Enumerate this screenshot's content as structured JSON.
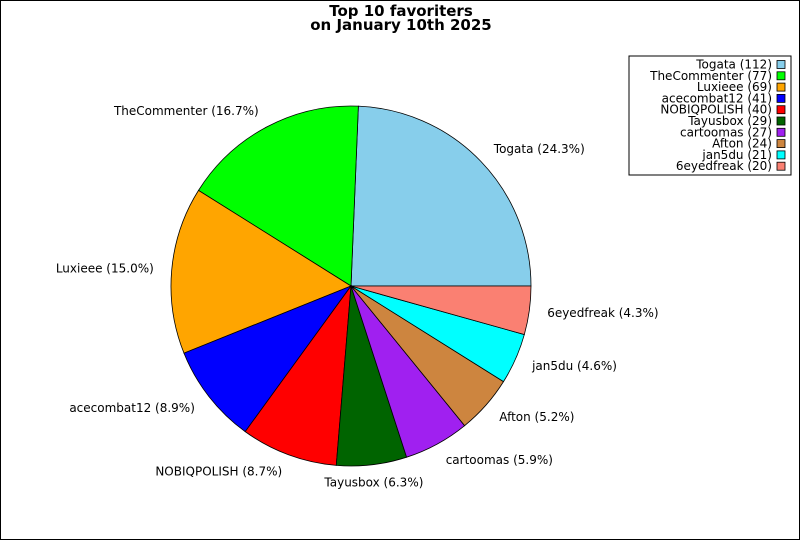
{
  "chart_data": {
    "type": "pie",
    "title_lines": [
      "Top 10 favoriters",
      "on January 10th 2025"
    ],
    "slices": [
      {
        "name": "Togata",
        "value": 112,
        "pct_label": "Togata (24.3%)",
        "legend_label": "Togata (112)",
        "color": "#87CEEB"
      },
      {
        "name": "TheCommenter",
        "value": 77,
        "pct_label": "TheCommenter (16.7%)",
        "legend_label": "TheCommenter (77)",
        "color": "#00FF00"
      },
      {
        "name": "Luxieee",
        "value": 69,
        "pct_label": "Luxieee (15.0%)",
        "legend_label": "Luxieee (69)",
        "color": "#FFA500"
      },
      {
        "name": "acecombat12",
        "value": 41,
        "pct_label": "acecombat12 (8.9%)",
        "legend_label": "acecombat12 (41)",
        "color": "#0000FF"
      },
      {
        "name": "NOBIQPOLISH",
        "value": 40,
        "pct_label": "NOBIQPOLISH (8.7%)",
        "legend_label": "NOBIQPOLISH (40)",
        "color": "#FF0000"
      },
      {
        "name": "Tayusbox",
        "value": 29,
        "pct_label": "Tayusbox (6.3%)",
        "legend_label": "Tayusbox (29)",
        "color": "#006400"
      },
      {
        "name": "cartoomas",
        "value": 27,
        "pct_label": "cartoomas (5.9%)",
        "legend_label": "cartoomas (27)",
        "color": "#A020F0"
      },
      {
        "name": "Afton",
        "value": 24,
        "pct_label": "Afton (5.2%)",
        "legend_label": "Afton (24)",
        "color": "#CD853F"
      },
      {
        "name": "jan5du",
        "value": 21,
        "pct_label": "jan5du (4.6%)",
        "legend_label": "jan5du (21)",
        "color": "#00FFFF"
      },
      {
        "name": "6eyedfreak",
        "value": 20,
        "pct_label": "6eyedfreak (4.3%)",
        "legend_label": "6eyedfreak (20)",
        "color": "#FA8072"
      }
    ],
    "legend_position": "top-right",
    "start_angle": "3 o'clock",
    "direction": "counterclockwise"
  }
}
